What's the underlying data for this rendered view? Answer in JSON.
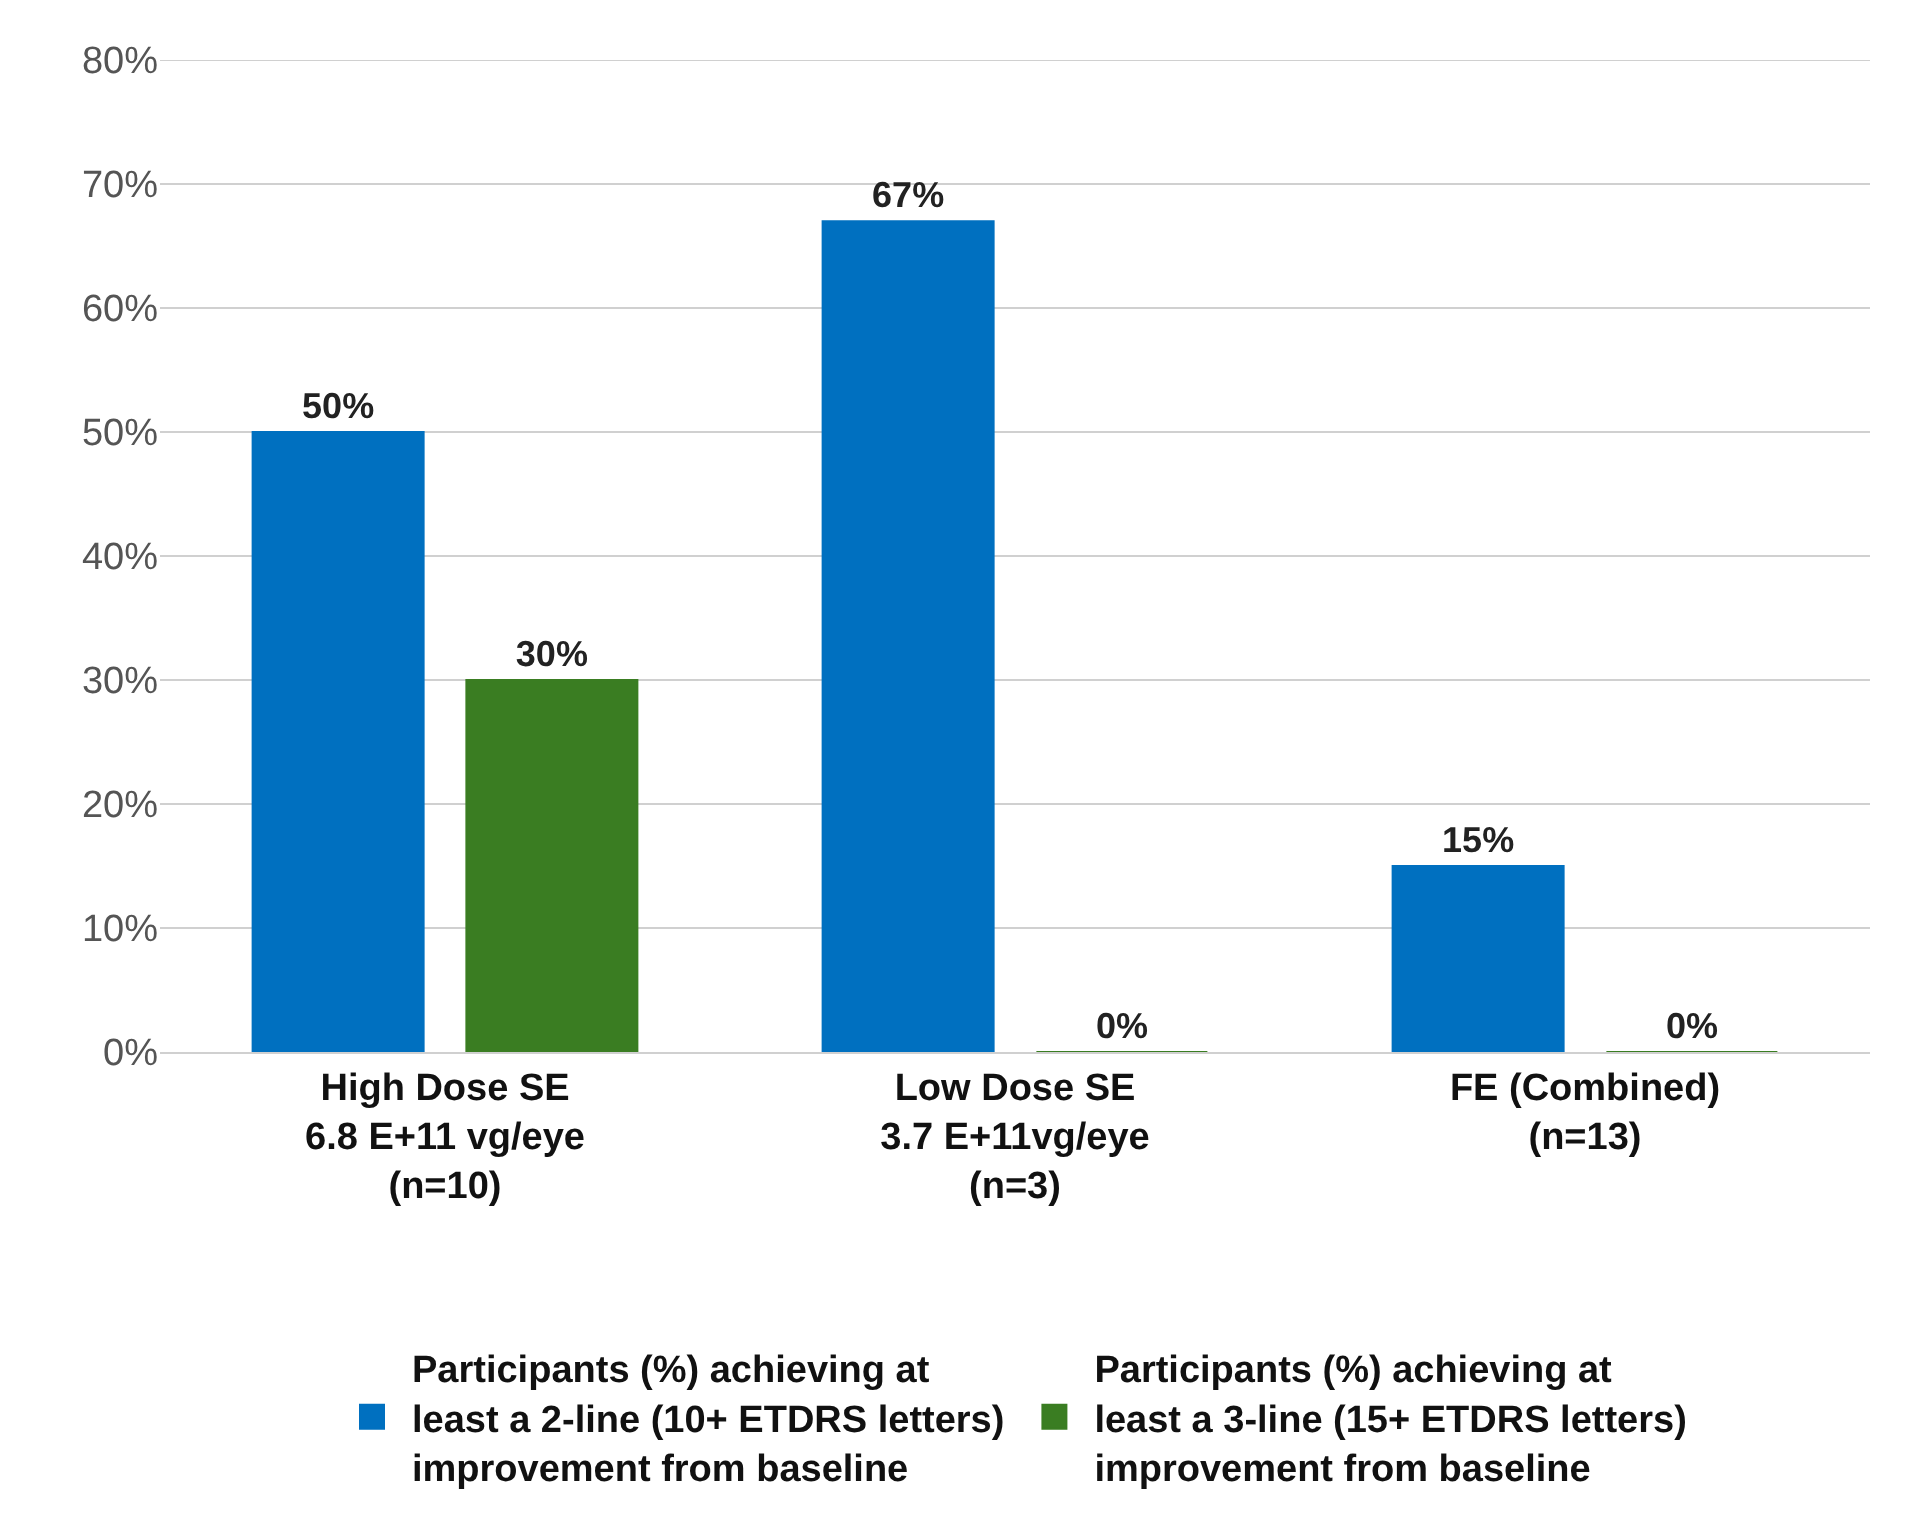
{
  "chart_data": {
    "type": "bar",
    "categories": [
      "High Dose SE\n6.8 E+11 vg/eye\n(n=10)",
      "Low Dose SE\n3.7 E+11vg/eye\n(n=3)",
      "FE (Combined)\n(n=13)"
    ],
    "series": [
      {
        "name": "Participants (%) achieving at\nleast a 2-line (10+ ETDRS letters)\nimprovement from baseline",
        "color": "#0070c0",
        "values": [
          50,
          67,
          15
        ],
        "value_labels": [
          "50%",
          "67%",
          "15%"
        ]
      },
      {
        "name": "Participants (%) achieving at\nleast a 3-line (15+ ETDRS letters)\nimprovement from baseline",
        "color": "#3a7d22",
        "values": [
          30,
          0,
          0
        ],
        "value_labels": [
          "30%",
          "0%",
          "0%"
        ]
      }
    ],
    "ylim": [
      0,
      80
    ],
    "yticks": [
      {
        "value": 0,
        "label": "0%"
      },
      {
        "value": 10,
        "label": "10%"
      },
      {
        "value": 20,
        "label": "20%"
      },
      {
        "value": 30,
        "label": "30%"
      },
      {
        "value": 40,
        "label": "40%"
      },
      {
        "value": 50,
        "label": "50%"
      },
      {
        "value": 60,
        "label": "60%"
      },
      {
        "value": 70,
        "label": "70%"
      },
      {
        "value": 80,
        "label": "80%"
      }
    ],
    "grid": "y",
    "legend": "bottom"
  }
}
